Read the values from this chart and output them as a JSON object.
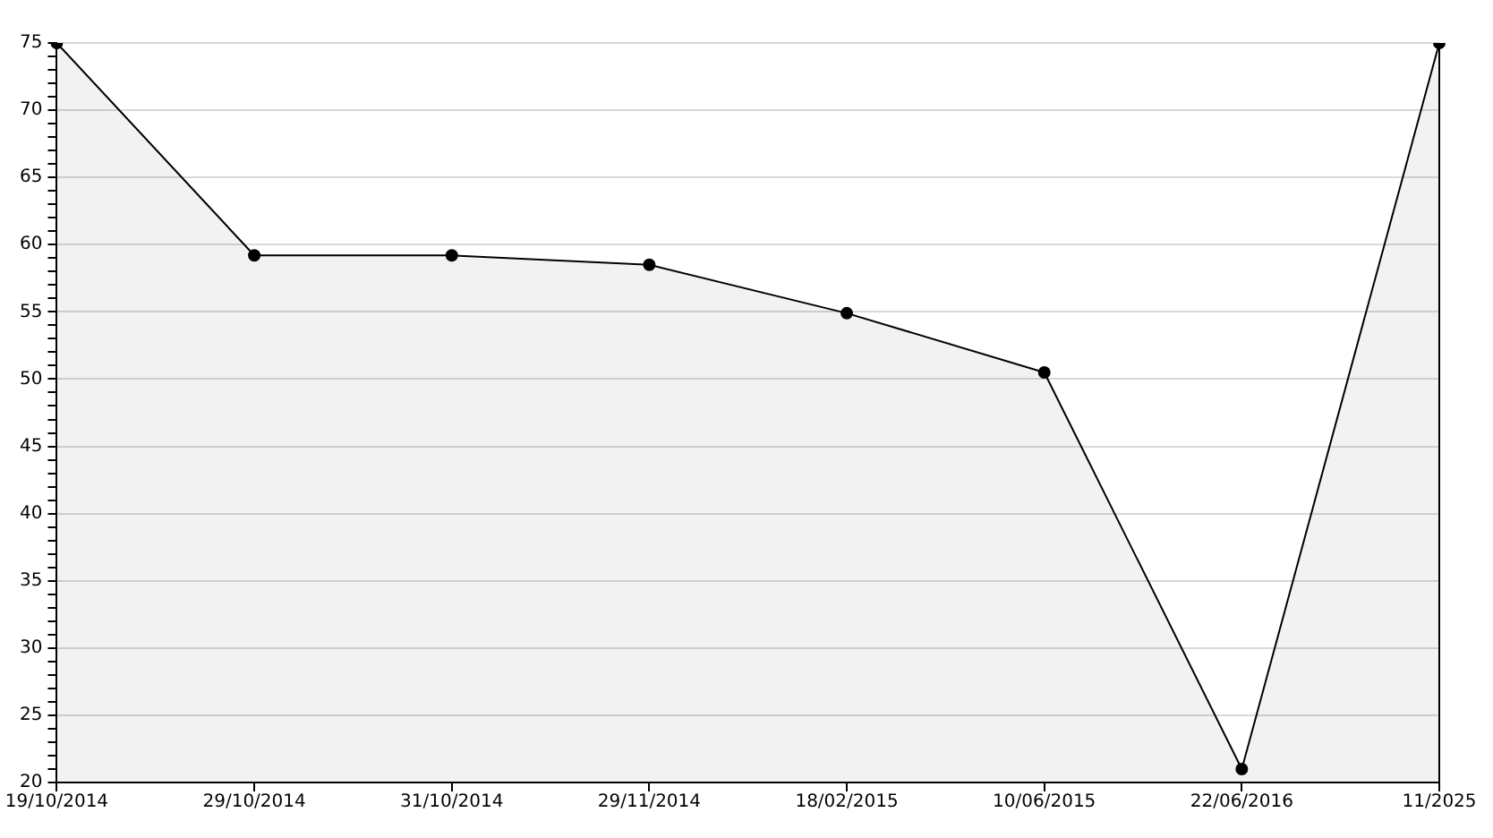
{
  "chart_data": {
    "type": "area",
    "categories": [
      "19/10/2014",
      "29/10/2014",
      "31/10/2014",
      "29/11/2014",
      "18/02/2015",
      "10/06/2015",
      "22/06/2016",
      "11/2025"
    ],
    "series": [
      {
        "color": "#000000",
        "values": [
          75,
          59.2,
          59.2,
          58.5,
          54.9,
          50.5,
          21,
          75
        ]
      }
    ],
    "ylim": [
      20,
      75
    ],
    "yticks": [
      20,
      {
        "value": 21,
        "label": null
      },
      {
        "value": 22,
        "label": null
      },
      {
        "value": 23,
        "label": null
      },
      {
        "value": 24,
        "label": null
      },
      25,
      {
        "value": 26,
        "label": null
      },
      {
        "value": 27,
        "label": null
      },
      {
        "value": 28,
        "label": null
      },
      {
        "value": 29,
        "label": null
      },
      30,
      {
        "value": 31,
        "label": null
      },
      {
        "value": 32,
        "label": null
      },
      {
        "value": 33,
        "label": null
      },
      {
        "value": 34,
        "label": null
      },
      35,
      {
        "value": 36,
        "label": null
      },
      {
        "value": 37,
        "label": null
      },
      {
        "value": 38,
        "label": null
      },
      {
        "value": 39,
        "label": null
      },
      40,
      {
        "value": 41,
        "label": null
      },
      {
        "value": 42,
        "label": null
      },
      {
        "value": 43,
        "label": null
      },
      {
        "value": 44,
        "label": null
      },
      45,
      {
        "value": 46,
        "label": null
      },
      {
        "value": 47,
        "label": null
      },
      {
        "value": 48,
        "label": null
      },
      {
        "value": 49,
        "label": null
      },
      50,
      {
        "value": 51,
        "label": null
      },
      {
        "value": 52,
        "label": null
      },
      {
        "value": 53,
        "label": null
      },
      {
        "value": 54,
        "label": null
      },
      55,
      {
        "value": 56,
        "label": null
      },
      {
        "value": 57,
        "label": null
      },
      {
        "value": 58,
        "label": null
      },
      {
        "value": 59,
        "label": null
      },
      60,
      {
        "value": 61,
        "label": null
      },
      {
        "value": 62,
        "label": null
      },
      {
        "value": 63,
        "label": null
      },
      {
        "value": 64,
        "label": null
      },
      65,
      {
        "value": 66,
        "label": null
      },
      {
        "value": 67,
        "label": null
      },
      {
        "value": 68,
        "label": null
      },
      {
        "value": 69,
        "label": null
      },
      70,
      {
        "value": 71,
        "label": null
      },
      {
        "value": 72,
        "label": null
      },
      {
        "value": 73,
        "label": null
      },
      {
        "value": 74,
        "label": null
      },
      75
    ],
    "grid": "y",
    "marker": "circle",
    "line_style": "solid",
    "legend": false
  }
}
